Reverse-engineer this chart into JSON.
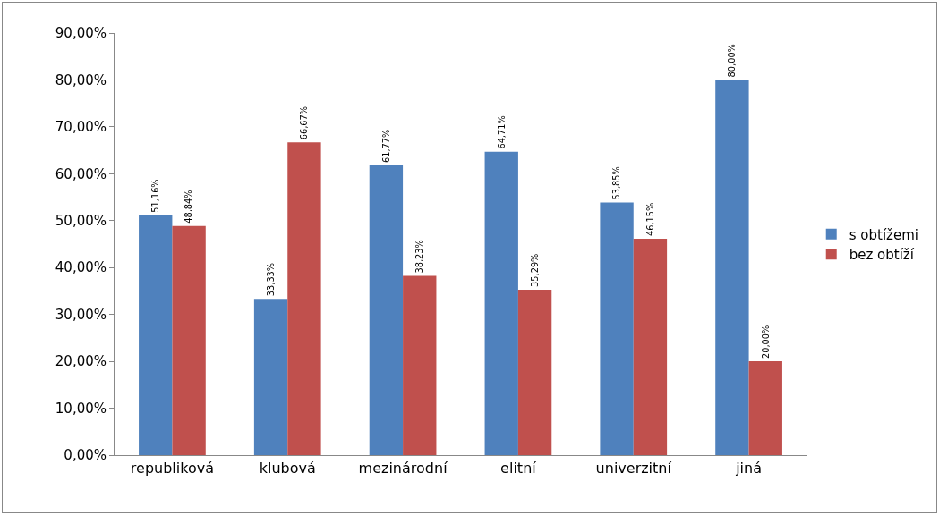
{
  "chart_data": {
    "type": "bar",
    "categories": [
      "republiková",
      "klubová",
      "mezinárodní",
      "elitní",
      "univerzitní",
      "jiná"
    ],
    "series": [
      {
        "name": "s obtížemi",
        "color": "#4f81bd",
        "values": [
          51.16,
          33.33,
          61.77,
          64.71,
          53.85,
          80
        ],
        "value_labels": [
          "51,16%",
          "33,33%",
          "61,77%",
          "64,71%",
          "53,85%",
          "80,00%"
        ]
      },
      {
        "name": "bez obtíží",
        "color": "#c0504d",
        "values": [
          48.84,
          66.67,
          38.23,
          35.29,
          46.15,
          20
        ],
        "value_labels": [
          "48,84%",
          "66,67%",
          "38,23%",
          "35,29%",
          "46,15%",
          "20,00%"
        ]
      }
    ],
    "ylim": [
      0,
      90
    ],
    "yticks": [
      {
        "value": 0,
        "label": "0,00%"
      },
      {
        "value": 10,
        "label": "10,00%"
      },
      {
        "value": 20,
        "label": "20,00%"
      },
      {
        "value": 30,
        "label": "30,00%"
      },
      {
        "value": 40,
        "label": "40,00%"
      },
      {
        "value": 50,
        "label": "50,00%"
      },
      {
        "value": 60,
        "label": "60,00%"
      },
      {
        "value": 70,
        "label": "70,00%"
      },
      {
        "value": 80,
        "label": "80,00%"
      },
      {
        "value": 90,
        "label": "90,00%"
      }
    ],
    "grid": false,
    "legend": "right"
  }
}
